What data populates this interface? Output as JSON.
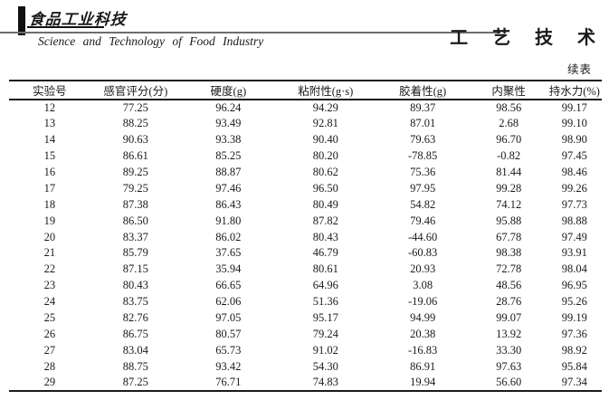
{
  "journal": {
    "logo_cn": "食品工业科技",
    "logo_en": "Science and Technology of Food Industry",
    "section_title": "工 艺 技 术",
    "continued_label": "续表"
  },
  "table": {
    "headers": [
      "实验号",
      "感官评分(分)",
      "硬度(g)",
      "粘附性(g·s)",
      "胶着性(g)",
      "内聚性",
      "持水力(%)"
    ],
    "rows": [
      [
        "12",
        "77.25",
        "96.24",
        "94.29",
        "89.37",
        "98.56",
        "99.17"
      ],
      [
        "13",
        "88.25",
        "93.49",
        "92.81",
        "87.01",
        "2.68",
        "99.10"
      ],
      [
        "14",
        "90.63",
        "93.38",
        "90.40",
        "79.63",
        "96.70",
        "98.90"
      ],
      [
        "15",
        "86.61",
        "85.25",
        "80.20",
        "-78.85",
        "-0.82",
        "97.45"
      ],
      [
        "16",
        "89.25",
        "88.87",
        "80.62",
        "75.36",
        "81.44",
        "98.46"
      ],
      [
        "17",
        "79.25",
        "97.46",
        "96.50",
        "97.95",
        "99.28",
        "99.26"
      ],
      [
        "18",
        "87.38",
        "86.43",
        "80.49",
        "54.82",
        "74.12",
        "97.73"
      ],
      [
        "19",
        "86.50",
        "91.80",
        "87.82",
        "79.46",
        "95.88",
        "98.88"
      ],
      [
        "20",
        "83.37",
        "86.02",
        "80.43",
        "-44.60",
        "67.78",
        "97.49"
      ],
      [
        "21",
        "85.79",
        "37.65",
        "46.79",
        "-60.83",
        "98.38",
        "93.91"
      ],
      [
        "22",
        "87.15",
        "35.94",
        "80.61",
        "20.93",
        "72.78",
        "98.04"
      ],
      [
        "23",
        "80.43",
        "66.65",
        "64.96",
        "3.08",
        "48.56",
        "96.95"
      ],
      [
        "24",
        "83.75",
        "62.06",
        "51.36",
        "-19.06",
        "28.76",
        "95.26"
      ],
      [
        "25",
        "82.76",
        "97.05",
        "95.17",
        "94.99",
        "99.07",
        "99.19"
      ],
      [
        "26",
        "86.75",
        "80.57",
        "79.24",
        "20.38",
        "13.92",
        "97.36"
      ],
      [
        "27",
        "83.04",
        "65.73",
        "91.02",
        "-16.83",
        "33.30",
        "98.92"
      ],
      [
        "28",
        "88.75",
        "93.42",
        "54.30",
        "86.91",
        "97.63",
        "95.84"
      ],
      [
        "29",
        "87.25",
        "76.71",
        "74.83",
        "19.94",
        "56.60",
        "97.34"
      ]
    ]
  }
}
